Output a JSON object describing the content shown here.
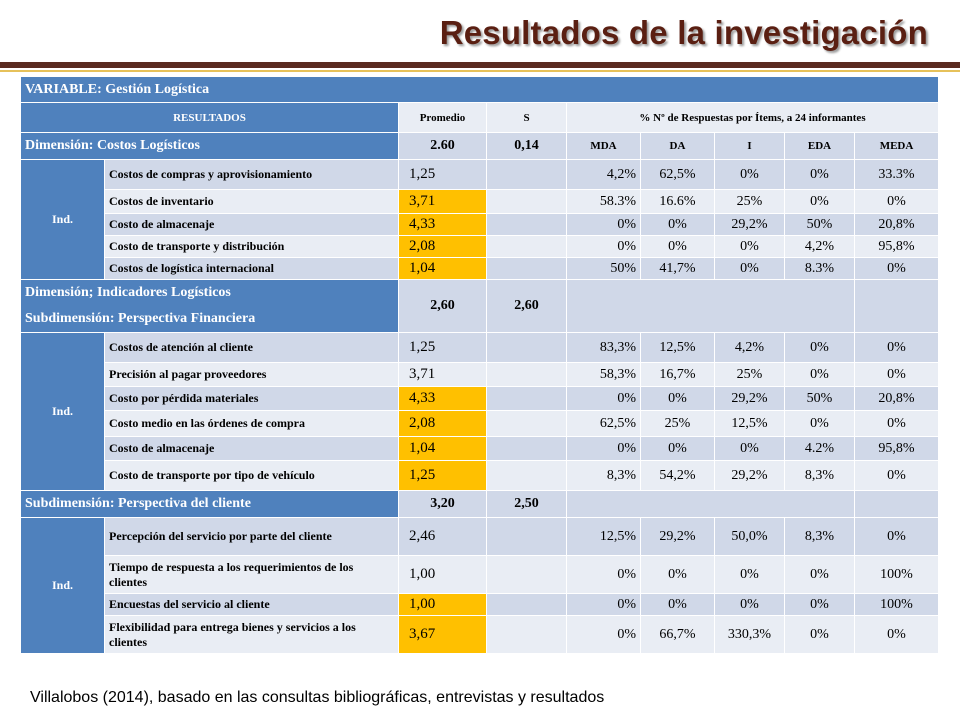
{
  "title": "Resultados de la investigación",
  "variable_label": "VARIABLE: Gestión Logística",
  "header": {
    "resultados": "RESULTADOS",
    "promedio": "Promedio",
    "s": "S",
    "respuestas": "% Nº de Respuestas por Ítems, a 24 informantes"
  },
  "scale": [
    "MDA",
    "DA",
    "I",
    "EDA",
    "MEDA"
  ],
  "ind_label": "Ind.",
  "sections": [
    {
      "name_lines": [
        "Dimensión: Costos Logísticos"
      ],
      "promedio": "2.60",
      "s": "0,14",
      "rows": [
        {
          "label": "Costos de compras y aprovisionamiento",
          "avg": "1,25",
          "highlight": false,
          "pcts": [
            "4,2%",
            "62,5%",
            "0%",
            "0%",
            "33.3%"
          ]
        },
        {
          "label": "Costos de inventario",
          "avg": "3,71",
          "highlight": true,
          "pcts": [
            "58.3%",
            "16.6%",
            "25%",
            "0%",
            "0%"
          ]
        },
        {
          "label": "Costo de almacenaje",
          "avg": "4,33",
          "highlight": true,
          "pcts": [
            "0%",
            "0%",
            "29,2%",
            "50%",
            "20,8%"
          ]
        },
        {
          "label": "Costo de transporte y distribución",
          "avg": "2,08",
          "highlight": true,
          "pcts": [
            "0%",
            "0%",
            "0%",
            "4,2%",
            "95,8%"
          ]
        },
        {
          "label": "Costos de logística internacional",
          "avg": "1,04",
          "highlight": true,
          "pcts": [
            "50%",
            "41,7%",
            "0%",
            "8.3%",
            "0%"
          ]
        }
      ]
    },
    {
      "name_lines": [
        "Dimensión; Indicadores Logísticos",
        "Subdimensión: Perspectiva Financiera"
      ],
      "promedio": "2,60",
      "s": "2,60",
      "rows": [
        {
          "label": "Costos de atención al cliente",
          "avg": "1,25",
          "highlight": false,
          "pcts": [
            "83,3%",
            "12,5%",
            "4,2%",
            "0%",
            "0%"
          ]
        },
        {
          "label": "Precisión al pagar proveedores",
          "avg": "3,71",
          "highlight": false,
          "pcts": [
            "58,3%",
            "16,7%",
            "25%",
            "0%",
            "0%"
          ]
        },
        {
          "label": "Costo por pérdida materiales",
          "avg": "4,33",
          "highlight": true,
          "pcts": [
            "0%",
            "0%",
            "29,2%",
            "50%",
            "20,8%"
          ]
        },
        {
          "label": "Costo medio en las órdenes de compra",
          "avg": "2,08",
          "highlight": true,
          "pcts": [
            "62,5%",
            "25%",
            "12,5%",
            "0%",
            "0%"
          ]
        },
        {
          "label": "Costo de almacenaje",
          "avg": "1,04",
          "highlight": true,
          "pcts": [
            "0%",
            "0%",
            "0%",
            "4.2%",
            "95,8%"
          ]
        },
        {
          "label": "Costo de transporte por tipo de vehículo",
          "avg": "1,25",
          "highlight": true,
          "pcts": [
            "8,3%",
            "54,2%",
            "29,2%",
            "8,3%",
            "0%"
          ]
        }
      ]
    },
    {
      "name_lines": [
        "Subdimensión:  Perspectiva del cliente"
      ],
      "promedio": "3,20",
      "s": "2,50",
      "rows": [
        {
          "label": "Percepción del servicio por parte del cliente",
          "avg": "2,46",
          "highlight": false,
          "pcts": [
            "12,5%",
            "29,2%",
            "50,0%",
            "8,3%",
            "0%"
          ]
        },
        {
          "label": "Tiempo de respuesta a los requerimientos de los clientes",
          "avg": "1,00",
          "highlight": false,
          "pcts": [
            "0%",
            "0%",
            "0%",
            "0%",
            "100%"
          ]
        },
        {
          "label": "Encuestas del servicio al cliente",
          "avg": "1,00",
          "highlight": true,
          "pcts": [
            "0%",
            "0%",
            "0%",
            "0%",
            "100%"
          ]
        },
        {
          "label": "Flexibilidad para entrega bienes y servicios a los clientes",
          "avg": "3,67",
          "highlight": true,
          "pcts": [
            "0%",
            "66,7%",
            "330,3%",
            "0%",
            "0%"
          ]
        }
      ]
    }
  ],
  "footer": "Villalobos (2014), basado en las consultas bibliográficas, entrevistas y resultados",
  "colors": {
    "header_blue": "#4f81bd",
    "row_light": "#d0d8e8",
    "row_mid": "#e9edf4",
    "highlight": "#ffc000",
    "title": "#5a1f12"
  }
}
